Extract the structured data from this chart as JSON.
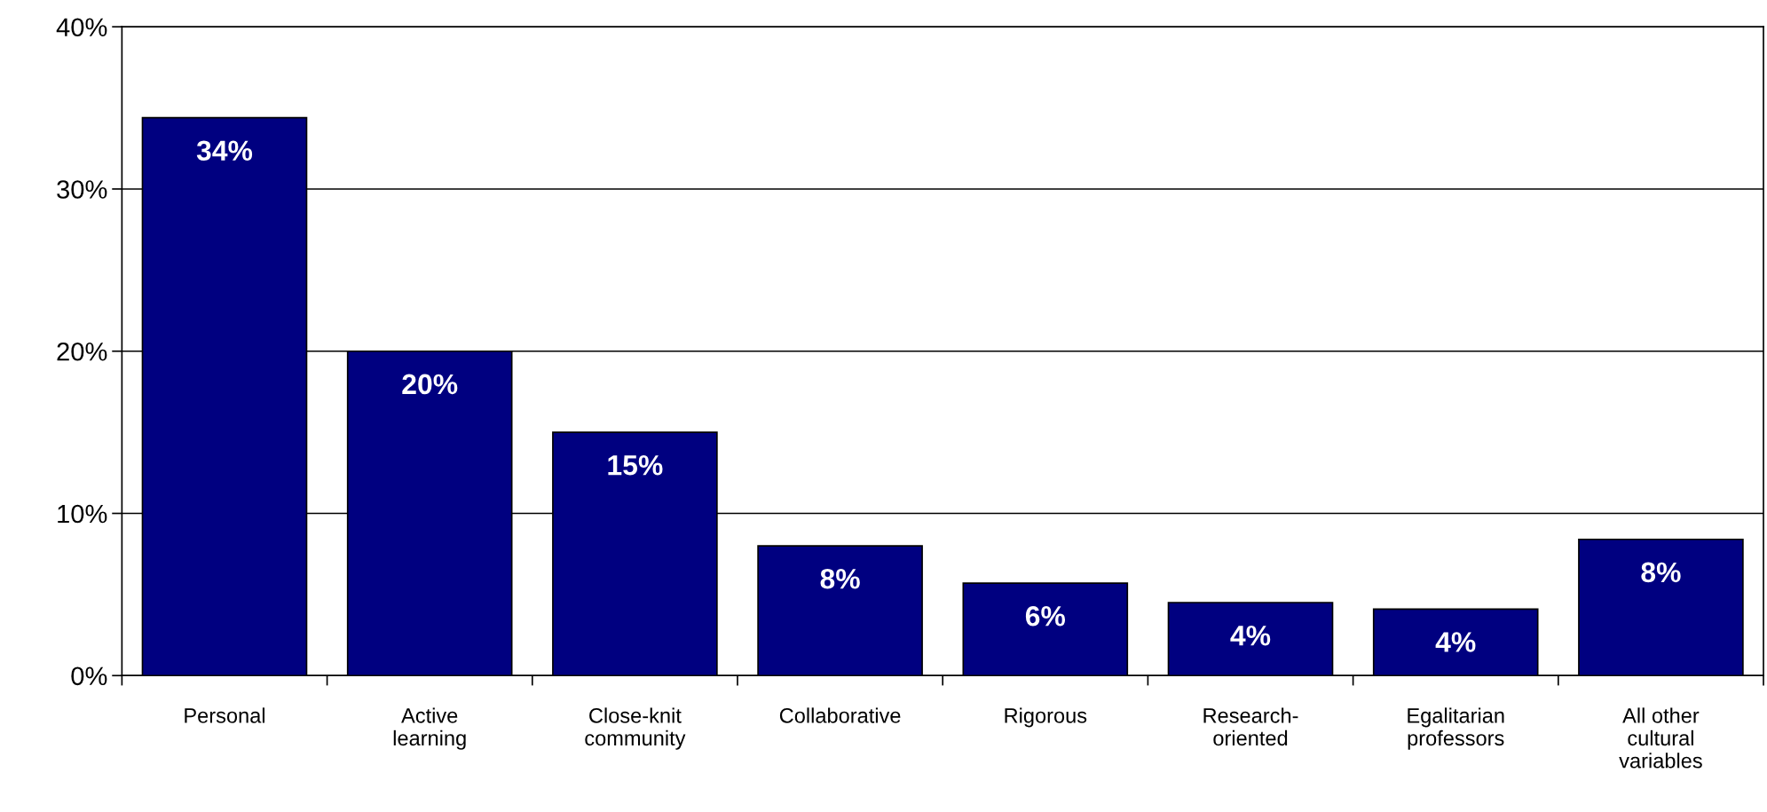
{
  "chart_data": {
    "type": "bar",
    "categories": [
      "Personal",
      "Active\nlearning",
      "Close-knit\ncommunity",
      "Collaborative",
      "Rigorous",
      "Research-\noriented",
      "Egalitarian\nprofessors",
      "All other\ncultural\nvariables"
    ],
    "values": [
      34.4,
      20,
      15,
      8,
      5.7,
      4.5,
      4.1,
      8.4
    ],
    "value_labels": [
      "34%",
      "20%",
      "15%",
      "8%",
      "6%",
      "4%",
      "4%",
      "8%"
    ],
    "color": "#000080",
    "ylim": [
      0,
      40
    ],
    "yticks": [
      {
        "value": 0,
        "label": "0%"
      },
      {
        "value": 10,
        "label": "10%"
      },
      {
        "value": 20,
        "label": "20%"
      },
      {
        "value": 30,
        "label": "30%"
      },
      {
        "value": 40,
        "label": "40%"
      }
    ],
    "grid": "y"
  }
}
